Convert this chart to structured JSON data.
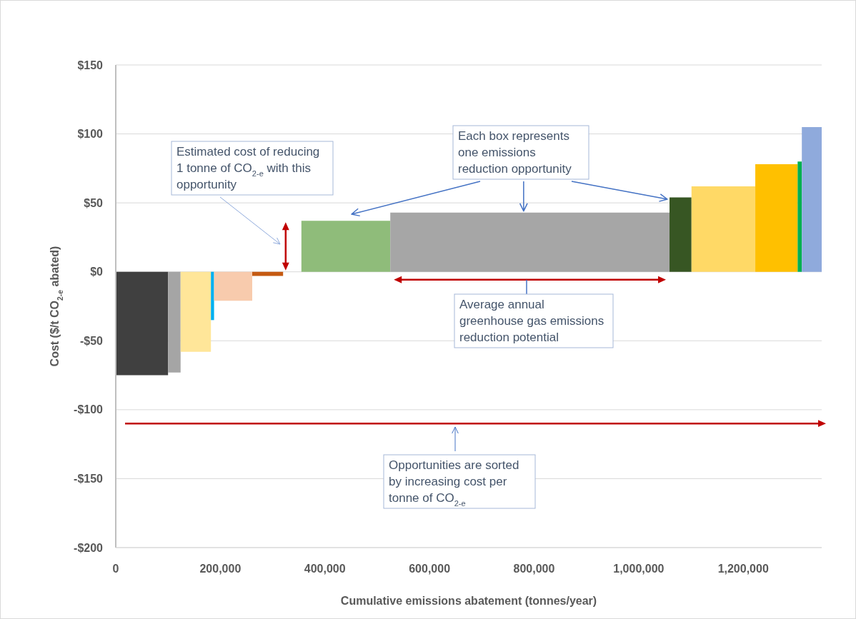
{
  "chart_data": {
    "type": "area",
    "xlabel": "Cumulative emissions abatement (tonnes/year)",
    "ylabel": "Cost ($/t CO$_{2-e}$ abated)",
    "xlim": [
      0,
      1350000
    ],
    "xticks": [
      0,
      {
        "value": 200000,
        "label": "200,000"
      },
      {
        "value": 400000,
        "label": "400,000"
      },
      {
        "value": 600000,
        "label": "600,000"
      },
      {
        "value": 800000,
        "label": "800,000"
      },
      {
        "value": 1000000,
        "label": "1,000,000"
      },
      {
        "value": 1200000,
        "label": "1,200,000"
      }
    ],
    "ylim": [
      -200,
      150
    ],
    "yticks": [
      {
        "value": -200,
        "label": "-$200"
      },
      {
        "value": -150,
        "label": "-$150"
      },
      {
        "value": -100,
        "label": "-$100"
      },
      {
        "value": -50,
        "label": "-$50"
      },
      {
        "value": 0,
        "label": "$0"
      },
      {
        "value": 50,
        "label": "$50"
      },
      {
        "value": 100,
        "label": "$100"
      },
      {
        "value": 150,
        "label": "$150"
      }
    ],
    "grid": "y",
    "series": [
      {
        "color": "#404040",
        "x": [
          0,
          100000
        ],
        "values": [
          -75,
          -75
        ]
      },
      {
        "color": "#a5a5a5",
        "x": [
          100000,
          124000
        ],
        "values": [
          -73,
          -73
        ]
      },
      {
        "color": "#ffe699",
        "x": [
          124000,
          182000
        ],
        "values": [
          -58,
          -58
        ]
      },
      {
        "color": "#00b0f0",
        "x": [
          182000,
          188000
        ],
        "values": [
          -35,
          -35
        ]
      },
      {
        "color": "#f8cbad",
        "x": [
          188000,
          261000
        ],
        "values": [
          -21,
          -21
        ]
      },
      {
        "color": "#c55a11",
        "x": [
          261000,
          320000
        ],
        "values": [
          -3,
          -3
        ]
      },
      {
        "color": "#8fbc7a",
        "x": [
          355000,
          525000
        ],
        "values": [
          37,
          37
        ]
      },
      {
        "color": "#a6a6a6",
        "x": [
          525000,
          1059000
        ],
        "values": [
          43,
          43
        ]
      },
      {
        "color": "#375623",
        "x": [
          1059000,
          1101000
        ],
        "values": [
          54,
          54
        ]
      },
      {
        "color": "#ffd966",
        "x": [
          1101000,
          1223000
        ],
        "values": [
          62,
          62
        ]
      },
      {
        "color": "#ffc000",
        "x": [
          1223000,
          1304000
        ],
        "values": [
          78,
          78
        ]
      },
      {
        "color": "#00b050",
        "x": [
          1304000,
          1312000
        ],
        "values": [
          80,
          80
        ]
      },
      {
        "color": "#8faadc",
        "x": [
          1312000,
          1350000
        ],
        "values": [
          105,
          105
        ]
      }
    ],
    "annotations": [
      "Estimated cost of reducing 1 tonne of CO$_{2-e}$ with this opportunity",
      {
        "text": "Each box represents one emissions reduction opportunity",
        "x": 780000,
        "y": 43
      },
      "Average annual greenhouse gas emissions reduction potential",
      "Opportunities are sorted by increasing cost per tonne of CO$_{2-e}$"
    ]
  }
}
